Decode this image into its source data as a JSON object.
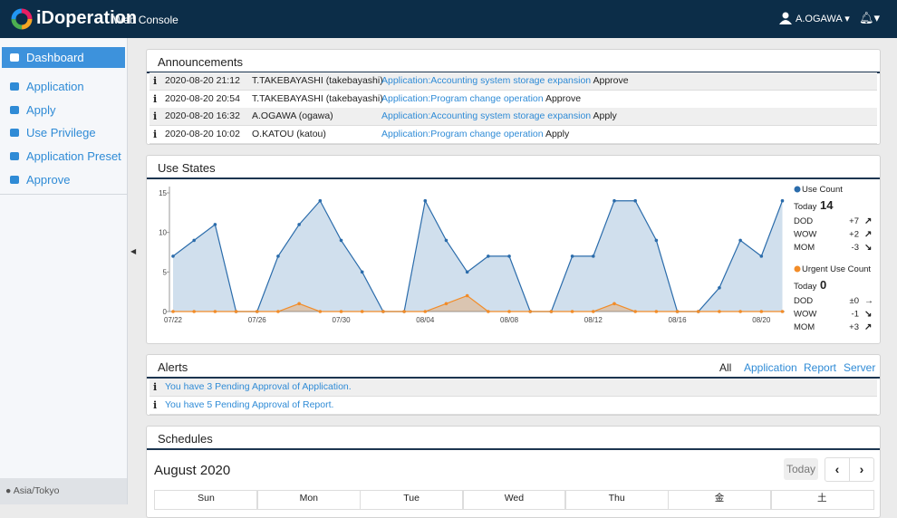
{
  "header": {
    "logo": "iDoperation",
    "subtitle": "Web Console",
    "user": "A.OGAWA"
  },
  "sidebar": {
    "items": [
      "Dashboard",
      "Application",
      "Apply",
      "Use Privilege",
      "Application Preset",
      "Approve"
    ],
    "active": 0,
    "timezone": "Asia/Tokyo"
  },
  "announcements": {
    "title": "Announcements",
    "rows": [
      [
        "2020-08-20 21:12",
        "T.TAKEBAYASHI (takebayashi)",
        "Application:Accounting system storage expansion",
        "Approve"
      ],
      [
        "2020-08-20 20:54",
        "T.TAKEBAYASHI (takebayashi)",
        "Application:Program change operation",
        "Approve"
      ],
      [
        "2020-08-20 16:32",
        "A.OGAWA (ogawa)",
        "Application:Accounting system storage expansion",
        "Apply"
      ],
      [
        "2020-08-20 10:02",
        "O.KATOU (katou)",
        "Application:Program change operation",
        "Apply"
      ]
    ]
  },
  "use_states": {
    "title": "Use States",
    "stats": [
      {
        "today_label": "Today",
        "today": "14",
        "rows": [
          {
            "label": "DOD",
            "value": "+7",
            "trend": "up"
          },
          {
            "label": "WOW",
            "value": "+2",
            "trend": "up"
          },
          {
            "label": "MOM",
            "value": "-3",
            "trend": "down"
          }
        ]
      },
      {
        "today_label": "Today",
        "today": "0",
        "rows": [
          {
            "label": "DOD",
            "value": "±0",
            "trend": "flat"
          },
          {
            "label": "WOW",
            "value": "-1",
            "trend": "down"
          },
          {
            "label": "MOM",
            "value": "+3",
            "trend": "up"
          }
        ]
      }
    ]
  },
  "chart_data": {
    "type": "area",
    "categories": [
      "07/22",
      null,
      null,
      null,
      "07/26",
      null,
      null,
      null,
      "07/30",
      null,
      null,
      null,
      "08/04",
      null,
      null,
      null,
      "08/08",
      null,
      null,
      null,
      "08/12",
      null,
      null,
      null,
      "08/16",
      null,
      null,
      null,
      "08/20",
      null
    ],
    "series": [
      {
        "name": "Use Count",
        "color": "#2b6cab",
        "values": [
          7,
          9,
          11,
          0,
          0,
          7,
          11,
          14,
          9,
          5,
          0,
          0,
          14,
          9,
          5,
          7,
          7,
          0,
          0,
          7,
          7,
          14,
          14,
          9,
          0,
          0,
          3,
          9,
          7,
          14
        ]
      },
      {
        "name": "Urgent Use Count",
        "color": "#f28c28",
        "values": [
          0,
          0,
          0,
          0,
          0,
          0,
          1,
          0,
          0,
          0,
          0,
          0,
          0,
          1,
          2,
          0,
          0,
          0,
          0,
          0,
          0,
          1,
          0,
          0,
          0,
          0,
          0,
          0,
          0,
          0
        ]
      }
    ],
    "ylim": [
      0,
      15
    ],
    "yticks": [
      0,
      5,
      10,
      15
    ]
  },
  "alerts": {
    "title": "Alerts",
    "filters": [
      "All",
      "Application",
      "Report",
      "Server"
    ],
    "rows": [
      "You have 3 Pending Approval of Application.",
      "You have 5 Pending Approval of Report."
    ]
  },
  "schedules": {
    "title": "Schedules",
    "month": "August 2020",
    "today": "Today",
    "weekdays": [
      "Sun",
      "Mon",
      "Tue",
      "Wed",
      "Thu",
      "金",
      "土"
    ]
  }
}
